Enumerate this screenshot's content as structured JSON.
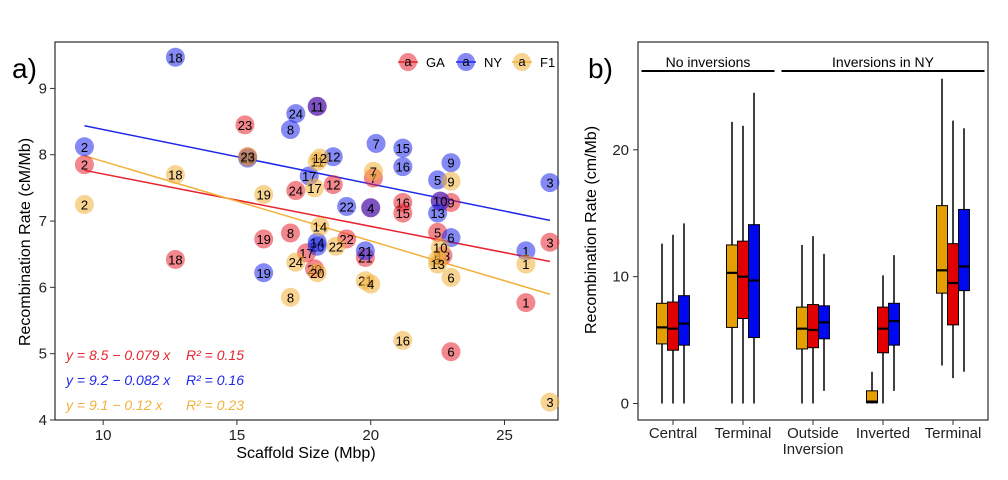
{
  "chart_data": [
    {
      "type": "scatter",
      "panel_label": "a)",
      "xlabel": "Scaffold Size (Mbp)",
      "ylabel": "Recombination Rate (cM/Mb)",
      "xlim": [
        8.2,
        27.0
      ],
      "ylim": [
        4.0,
        9.7
      ],
      "xticks": [
        10,
        15,
        20,
        25
      ],
      "yticks": [
        4,
        5,
        6,
        7,
        8,
        9
      ],
      "legend_position": "top-right",
      "series": [
        {
          "name": "GA",
          "color": "#e8242f",
          "fit": {
            "intercept": 8.5,
            "slope": -0.079,
            "label": "y = 8.5 − 0.079 x",
            "r2_label": "R² = 0.15",
            "x_range": [
              9.3,
              26.7
            ]
          },
          "points": [
            {
              "x": 9.3,
              "y": 7.85,
              "label": "2"
            },
            {
              "x": 12.7,
              "y": 6.42,
              "label": "18"
            },
            {
              "x": 15.3,
              "y": 8.45,
              "label": "23"
            },
            {
              "x": 15.4,
              "y": 7.97,
              "label": "20"
            },
            {
              "x": 16.0,
              "y": 6.73,
              "label": "19"
            },
            {
              "x": 17.0,
              "y": 6.82,
              "label": "8"
            },
            {
              "x": 17.2,
              "y": 7.46,
              "label": "24"
            },
            {
              "x": 17.6,
              "y": 6.52,
              "label": "17"
            },
            {
              "x": 17.9,
              "y": 6.28,
              "label": "20"
            },
            {
              "x": 18.0,
              "y": 8.73,
              "label": "11"
            },
            {
              "x": 18.6,
              "y": 7.55,
              "label": "12"
            },
            {
              "x": 19.1,
              "y": 6.73,
              "label": "22"
            },
            {
              "x": 19.8,
              "y": 6.45,
              "label": "21"
            },
            {
              "x": 20.0,
              "y": 7.2,
              "label": "4"
            },
            {
              "x": 20.1,
              "y": 7.65,
              "label": "7"
            },
            {
              "x": 21.2,
              "y": 7.28,
              "label": "16"
            },
            {
              "x": 21.2,
              "y": 7.12,
              "label": "15"
            },
            {
              "x": 22.5,
              "y": 6.83,
              "label": "5"
            },
            {
              "x": 22.7,
              "y": 6.48,
              "label": "13"
            },
            {
              "x": 22.6,
              "y": 7.3,
              "label": "10"
            },
            {
              "x": 23.0,
              "y": 7.28,
              "label": "9"
            },
            {
              "x": 23.0,
              "y": 5.03,
              "label": "6"
            },
            {
              "x": 25.8,
              "y": 5.77,
              "label": "1"
            },
            {
              "x": 26.7,
              "y": 6.68,
              "label": "3"
            }
          ]
        },
        {
          "name": "NY",
          "color": "#1f28ea",
          "fit": {
            "intercept": 9.2,
            "slope": -0.082,
            "label": "y = 9.2 − 0.082 x",
            "r2_label": "R² = 0.16",
            "x_range": [
              9.3,
              26.7
            ]
          },
          "points": [
            {
              "x": 9.3,
              "y": 8.12,
              "label": "2"
            },
            {
              "x": 12.7,
              "y": 9.47,
              "label": "18"
            },
            {
              "x": 15.4,
              "y": 7.95,
              "label": "23"
            },
            {
              "x": 16.0,
              "y": 6.22,
              "label": "19"
            },
            {
              "x": 17.0,
              "y": 8.38,
              "label": "8"
            },
            {
              "x": 17.2,
              "y": 8.62,
              "label": "24"
            },
            {
              "x": 17.7,
              "y": 7.68,
              "label": "17"
            },
            {
              "x": 18.0,
              "y": 6.62,
              "label": "20"
            },
            {
              "x": 18.0,
              "y": 8.73,
              "label": "11"
            },
            {
              "x": 18.6,
              "y": 7.97,
              "label": "12"
            },
            {
              "x": 19.1,
              "y": 7.22,
              "label": "22"
            },
            {
              "x": 19.8,
              "y": 6.55,
              "label": "21"
            },
            {
              "x": 20.0,
              "y": 7.2,
              "label": "4"
            },
            {
              "x": 20.2,
              "y": 8.17,
              "label": "7"
            },
            {
              "x": 21.2,
              "y": 8.1,
              "label": "15"
            },
            {
              "x": 21.2,
              "y": 7.82,
              "label": "16"
            },
            {
              "x": 22.5,
              "y": 7.62,
              "label": "5"
            },
            {
              "x": 22.6,
              "y": 7.3,
              "label": "10"
            },
            {
              "x": 22.5,
              "y": 7.12,
              "label": "13"
            },
            {
              "x": 23.0,
              "y": 6.75,
              "label": "6"
            },
            {
              "x": 23.0,
              "y": 7.88,
              "label": "9"
            },
            {
              "x": 25.8,
              "y": 6.55,
              "label": "1"
            },
            {
              "x": 26.7,
              "y": 7.58,
              "label": "3"
            },
            {
              "x": 18.0,
              "y": 6.68,
              "label": "14"
            }
          ]
        },
        {
          "name": "F1",
          "color": "#f2b13a",
          "fit": {
            "intercept": 9.1,
            "slope": -0.12,
            "label": "y = 9.1 − 0.12 x",
            "r2_label": "R² = 0.23",
            "x_range": [
              9.3,
              26.7
            ]
          },
          "points": [
            {
              "x": 9.3,
              "y": 7.25,
              "label": "2"
            },
            {
              "x": 12.7,
              "y": 7.7,
              "label": "18"
            },
            {
              "x": 15.4,
              "y": 7.97,
              "label": "23"
            },
            {
              "x": 16.0,
              "y": 7.4,
              "label": "19"
            },
            {
              "x": 17.0,
              "y": 5.85,
              "label": "8"
            },
            {
              "x": 17.2,
              "y": 6.38,
              "label": "24"
            },
            {
              "x": 17.9,
              "y": 7.5,
              "label": "17"
            },
            {
              "x": 18.0,
              "y": 6.22,
              "label": "20"
            },
            {
              "x": 18.0,
              "y": 7.9,
              "label": "11"
            },
            {
              "x": 18.1,
              "y": 6.92,
              "label": "14"
            },
            {
              "x": 18.1,
              "y": 7.95,
              "label": "12"
            },
            {
              "x": 18.7,
              "y": 6.62,
              "label": "22"
            },
            {
              "x": 19.8,
              "y": 6.1,
              "label": "21"
            },
            {
              "x": 20.0,
              "y": 6.05,
              "label": "4"
            },
            {
              "x": 20.1,
              "y": 7.75,
              "label": "7"
            },
            {
              "x": 21.2,
              "y": 5.2,
              "label": "16"
            },
            {
              "x": 22.5,
              "y": 6.42,
              "label": "5"
            },
            {
              "x": 22.6,
              "y": 6.6,
              "label": "10"
            },
            {
              "x": 22.5,
              "y": 6.35,
              "label": "13"
            },
            {
              "x": 23.0,
              "y": 7.6,
              "label": "9"
            },
            {
              "x": 23.0,
              "y": 6.15,
              "label": "6"
            },
            {
              "x": 25.8,
              "y": 6.35,
              "label": "1"
            },
            {
              "x": 26.7,
              "y": 4.27,
              "label": "3"
            }
          ]
        }
      ]
    },
    {
      "type": "box",
      "panel_label": "b)",
      "ylabel": "Recombination Rate (cm/Mb)",
      "ylim": [
        -1.3,
        28.5
      ],
      "yticks": [
        0,
        10,
        20
      ],
      "series_colors": [
        "#e69f00",
        "#e00000",
        "#0008f0"
      ],
      "category_groups": [
        {
          "label": "No inversions",
          "categories": [
            0,
            1
          ]
        },
        {
          "label": "Inversions in NY",
          "categories": [
            2,
            3,
            4
          ]
        }
      ],
      "categories": [
        {
          "label": "Central",
          "boxes": [
            {
              "min": 0,
              "q1": 4.7,
              "median": 6.0,
              "q3": 7.9,
              "max": 12.6
            },
            {
              "min": 0,
              "q1": 4.2,
              "median": 5.9,
              "q3": 8.0,
              "max": 13.3
            },
            {
              "min": 0,
              "q1": 4.6,
              "median": 6.3,
              "q3": 8.5,
              "max": 14.2
            }
          ]
        },
        {
          "label": "Terminal",
          "boxes": [
            {
              "min": 0,
              "q1": 6.0,
              "median": 10.3,
              "q3": 12.5,
              "max": 22.2
            },
            {
              "min": 0,
              "q1": 6.7,
              "median": 10.0,
              "q3": 12.8,
              "max": 21.9
            },
            {
              "min": 0,
              "q1": 5.2,
              "median": 9.7,
              "q3": 14.1,
              "max": 24.5
            }
          ]
        },
        {
          "label": "Outside\nInversion",
          "boxes": [
            {
              "min": 0,
              "q1": 4.3,
              "median": 5.9,
              "q3": 7.6,
              "max": 12.5
            },
            {
              "min": 0,
              "q1": 4.4,
              "median": 5.8,
              "q3": 7.8,
              "max": 13.2
            },
            {
              "min": 1.0,
              "q1": 5.1,
              "median": 6.4,
              "q3": 7.7,
              "max": 11.8
            }
          ]
        },
        {
          "label": "Inverted",
          "boxes": [
            {
              "min": 0,
              "q1": 0.05,
              "median": 0.15,
              "q3": 1.0,
              "max": 2.5
            },
            {
              "min": 0,
              "q1": 4.0,
              "median": 5.9,
              "q3": 7.6,
              "max": 10.1
            },
            {
              "min": 1.0,
              "q1": 4.6,
              "median": 6.5,
              "q3": 7.9,
              "max": 11.7
            }
          ]
        },
        {
          "label": "Terminal",
          "boxes": [
            {
              "min": 3.0,
              "q1": 8.7,
              "median": 10.5,
              "q3": 15.6,
              "max": 25.6
            },
            {
              "min": 2.0,
              "q1": 6.2,
              "median": 9.5,
              "q3": 12.6,
              "max": 22.3
            },
            {
              "min": 2.5,
              "q1": 8.9,
              "median": 10.8,
              "q3": 15.3,
              "max": 21.7
            }
          ]
        }
      ]
    }
  ]
}
